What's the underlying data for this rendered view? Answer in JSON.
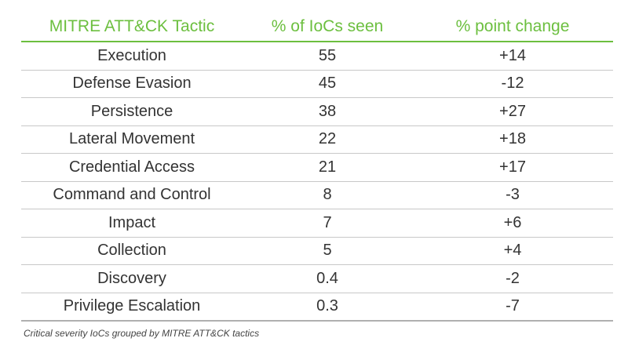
{
  "chart_data": {
    "type": "table",
    "columns": [
      "MITRE ATT&CK Tactic",
      "% of IoCs seen",
      "% point change"
    ],
    "rows": [
      [
        "Execution",
        "55",
        "+14"
      ],
      [
        "Defense Evasion",
        "45",
        "-12"
      ],
      [
        "Persistence",
        "38",
        "+27"
      ],
      [
        "Lateral Movement",
        "22",
        "+18"
      ],
      [
        "Credential Access",
        "21",
        "+17"
      ],
      [
        "Command and Control",
        "8",
        "-3"
      ],
      [
        "Impact",
        "7",
        "+6"
      ],
      [
        "Collection",
        "5",
        "+4"
      ],
      [
        "Discovery",
        "0.4",
        "-2"
      ],
      [
        "Privilege Escalation",
        "0.3",
        "-7"
      ]
    ],
    "caption": "Critical severity IoCs grouped by MITRE ATT&CK tactics"
  },
  "colors": {
    "header_text": "#6cbf3f",
    "header_rule": "#6cbf3f",
    "body_text": "#333333"
  }
}
